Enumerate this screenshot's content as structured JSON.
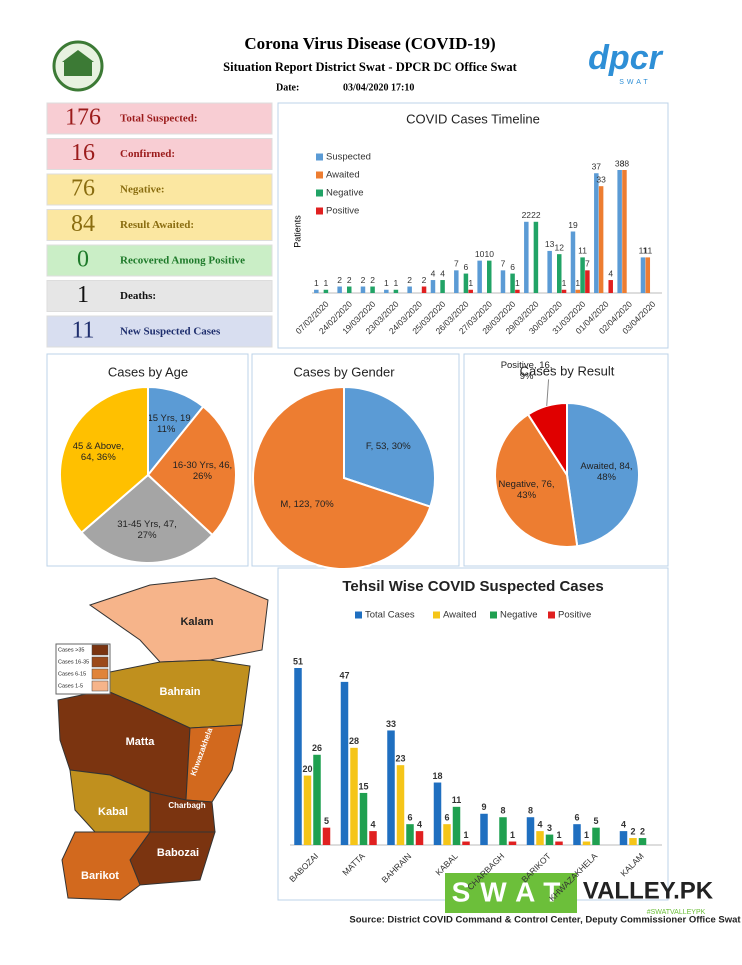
{
  "header": {
    "title": "Corona Virus Disease (COVID-19)",
    "subtitle": "Situation Report District Swat - DPCR DC Office Swat",
    "date_label": "Date:",
    "date": "03/04/2020 17:10",
    "logo_text": "dpcr",
    "logo_subtext": "SWAT"
  },
  "stats": [
    {
      "value": 176,
      "label": "Total Suspected:"
    },
    {
      "value": 16,
      "label": "Confirmed:"
    },
    {
      "value": 76,
      "label": "Negative:"
    },
    {
      "value": 84,
      "label": "Result Awaited:"
    },
    {
      "value": 0,
      "label": "Recovered Among Positive"
    },
    {
      "value": 1,
      "label": "Deaths:"
    },
    {
      "value": 11,
      "label": "New Suspected Cases"
    }
  ],
  "chart_data": [
    {
      "type": "bar",
      "title": "COVID Cases Timeline",
      "y_label": "Patients",
      "categories": [
        "07/02/2020",
        "24/02/2020",
        "19/03/2020",
        "23/03/2020",
        "24/03/2020",
        "25/03/2020",
        "26/03/2020",
        "27/03/2020",
        "28/03/2020",
        "29/03/2020",
        "30/03/2020",
        "31/03/2020",
        "01/04/2020",
        "02/04/2020",
        "03/04/2020"
      ],
      "series": [
        {
          "name": "Suspected",
          "color": "#5b9bd5",
          "values": [
            1,
            2,
            2,
            1,
            2,
            4,
            7,
            10,
            7,
            22,
            13,
            19,
            37,
            38,
            11
          ]
        },
        {
          "name": "Awaited",
          "color": "#ed7d31",
          "values": [
            null,
            null,
            null,
            null,
            null,
            null,
            null,
            null,
            null,
            null,
            null,
            1,
            33,
            38,
            11
          ]
        },
        {
          "name": "Negative",
          "color": "#21a366",
          "values": [
            1,
            2,
            2,
            1,
            null,
            4,
            6,
            10,
            6,
            22,
            12,
            11,
            null,
            null,
            null
          ]
        },
        {
          "name": "Positive",
          "color": "#e02020",
          "values": [
            null,
            null,
            null,
            null,
            2,
            null,
            1,
            null,
            1,
            null,
            1,
            7,
            4,
            null,
            null
          ]
        }
      ]
    },
    {
      "type": "pie",
      "title": "Cases by Age",
      "values": [
        19,
        46,
        47,
        64
      ],
      "value_labels": [
        "1-15 Yrs, 19, 11%",
        "16-30 Yrs, 46, 26%",
        "31-45 Yrs, 47, 27%",
        "45 & Above, 64, 36%"
      ],
      "colors": [
        "#5b9bd5",
        "#ed7d31",
        "#a5a5a5",
        "#ffc000"
      ]
    },
    {
      "type": "pie",
      "title": "Cases by Gender",
      "values": [
        53,
        123
      ],
      "value_labels": [
        "F, 53, 30%",
        "M, 123, 70%"
      ],
      "colors": [
        "#5b9bd5",
        "#ed7d31"
      ]
    },
    {
      "type": "pie",
      "title": "Cases by Result",
      "values": [
        84,
        76,
        16
      ],
      "value_labels": [
        "Awaited, 84, 48%",
        "Negative, 76, 43%",
        "Positive, 16, 9%"
      ],
      "colors": [
        "#5b9bd5",
        "#ed7d31",
        "#e00000"
      ]
    },
    {
      "type": "bar",
      "title": "Tehsil Wise COVID Suspected Cases",
      "categories": [
        "BABOZAI",
        "MATTA",
        "BAHRAIN",
        "KABAL",
        "CHARBAGH",
        "BARIKOT",
        "KHWAZAKHELA",
        "KALAM"
      ],
      "series": [
        {
          "name": "Total Cases",
          "color": "#1f6fc0",
          "values": [
            51,
            47,
            33,
            18,
            9,
            8,
            6,
            4
          ]
        },
        {
          "name": "Awaited",
          "color": "#f5c518",
          "values": [
            20,
            28,
            23,
            6,
            null,
            4,
            1,
            2
          ]
        },
        {
          "name": "Negative",
          "color": "#1fa050",
          "values": [
            26,
            15,
            6,
            11,
            8,
            3,
            5,
            2
          ]
        },
        {
          "name": "Positive",
          "color": "#e02020",
          "values": [
            5,
            4,
            4,
            1,
            1,
            1,
            null,
            null
          ]
        }
      ]
    }
  ],
  "map": {
    "regions": [
      "Kalam",
      "Bahrain",
      "Matta",
      "Khwazakhela",
      "Charbagh",
      "Kabal",
      "Babozai",
      "Barikot"
    ],
    "legend": [
      "Cases >35",
      "Cases 16-35",
      "Cases 6-15",
      "Cases 1-5"
    ]
  },
  "source": "Source: District COVID Command & Control Center, Deputy Commissioner Office Swat",
  "watermark": {
    "brand": "SWAT",
    "site": "VALLEY.PK",
    "tag": "#SWATVALLEYPK"
  }
}
